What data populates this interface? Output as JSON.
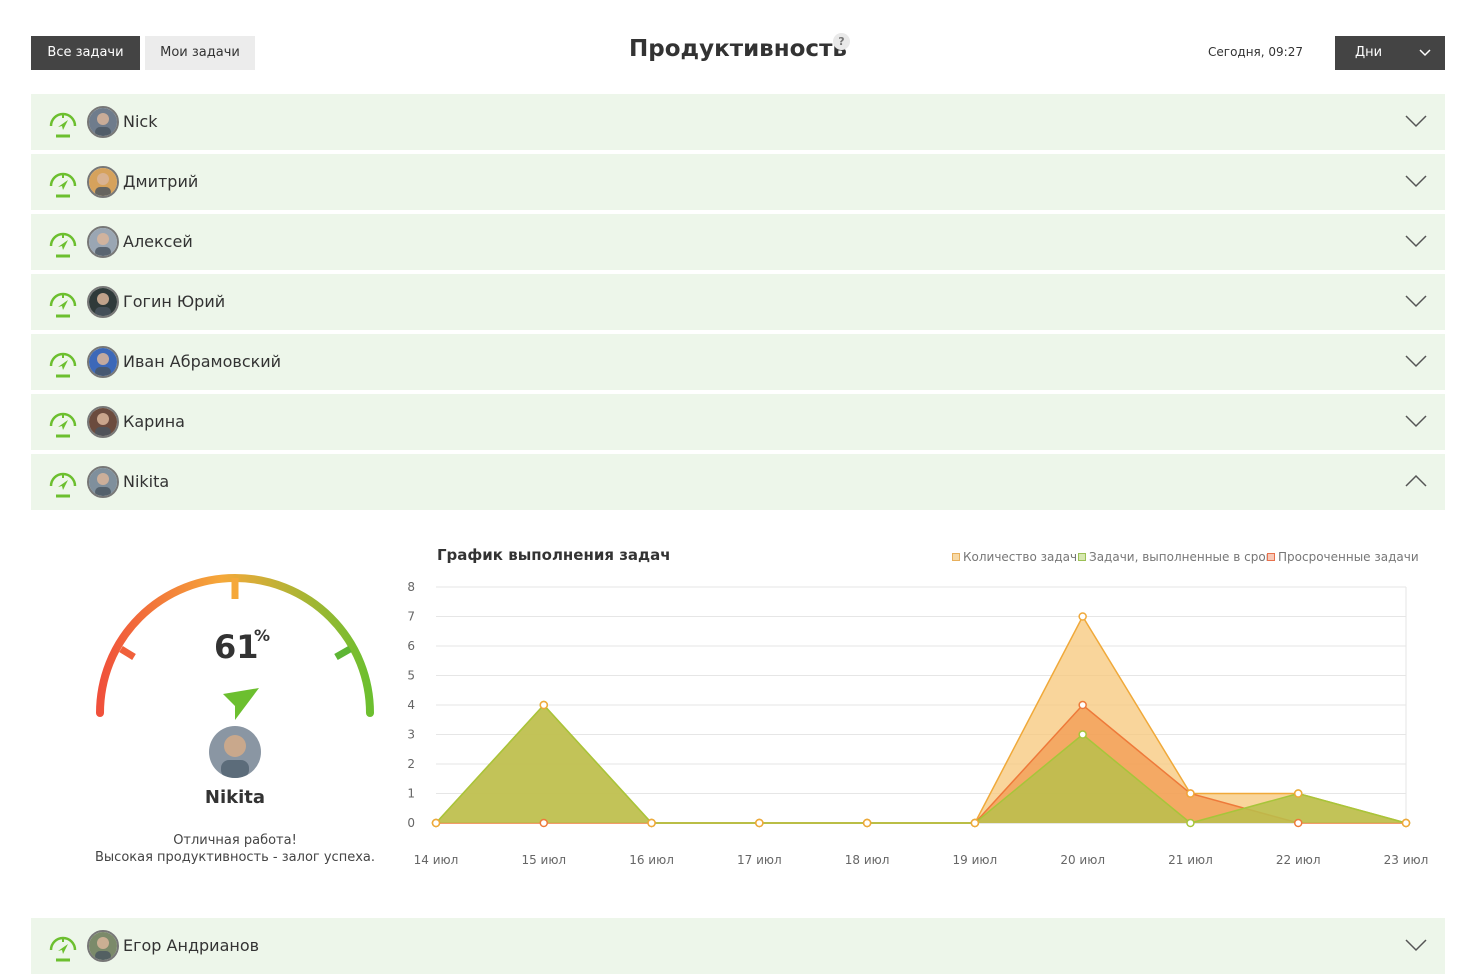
{
  "header": {
    "tabs": [
      {
        "label": "Все задачи",
        "active": true
      },
      {
        "label": "Мои задачи",
        "active": false
      }
    ],
    "title": "Продуктивность",
    "help": "?",
    "today": "Сегодня, 09:27",
    "period": "Дни"
  },
  "users": [
    {
      "name": "Nick",
      "expanded": false
    },
    {
      "name": "Дмитрий",
      "expanded": false
    },
    {
      "name": "Алексей",
      "expanded": false
    },
    {
      "name": "Гогин Юрий",
      "expanded": false
    },
    {
      "name": "Иван Абрамовский",
      "expanded": false
    },
    {
      "name": "Карина",
      "expanded": false
    },
    {
      "name": "Nikita",
      "expanded": true
    },
    {
      "name": "Егор Андрианов",
      "expanded": false
    }
  ],
  "detail": {
    "productivity_value": "61",
    "productivity_unit": "%",
    "productivity_fraction": 0.61,
    "user_name": "Nikita",
    "message_line1": "Отличная работа!",
    "message_line2": "Высокая продуктивность - залог успеха."
  },
  "colors": {
    "accent_green": "#6cbf2f",
    "row_bg": "#edf6ea",
    "dark_btn": "#444444",
    "total_fill": "#f7c77a",
    "ontime_fill": "#b9bf4c",
    "overdue_fill": "#f29a52"
  },
  "chart_data": {
    "type": "area",
    "title": "График выполнения задач",
    "categories": [
      "14 июл",
      "15 июл",
      "16 июл",
      "17 июл",
      "18 июл",
      "19 июл",
      "20 июл",
      "21 июл",
      "22 июл",
      "23 июл"
    ],
    "series": [
      {
        "name": "Количество задач",
        "values": [
          0,
          4,
          0,
          0,
          0,
          0,
          7,
          1,
          1,
          0
        ],
        "color": "#f7c77a"
      },
      {
        "name": "Задачи, выполненные в срок",
        "values": [
          0,
          4,
          0,
          0,
          0,
          0,
          3,
          0,
          1,
          0
        ],
        "color": "#b9bf4c"
      },
      {
        "name": "Просроченные задачи",
        "values": [
          0,
          0,
          0,
          0,
          0,
          0,
          4,
          1,
          0,
          0
        ],
        "color": "#f29a52"
      }
    ],
    "ylim": [
      0,
      8
    ],
    "yticks": [
      "0",
      "1",
      "2",
      "3",
      "4",
      "5",
      "6",
      "7",
      "8"
    ],
    "grid": true,
    "legend_position": "top-right"
  }
}
